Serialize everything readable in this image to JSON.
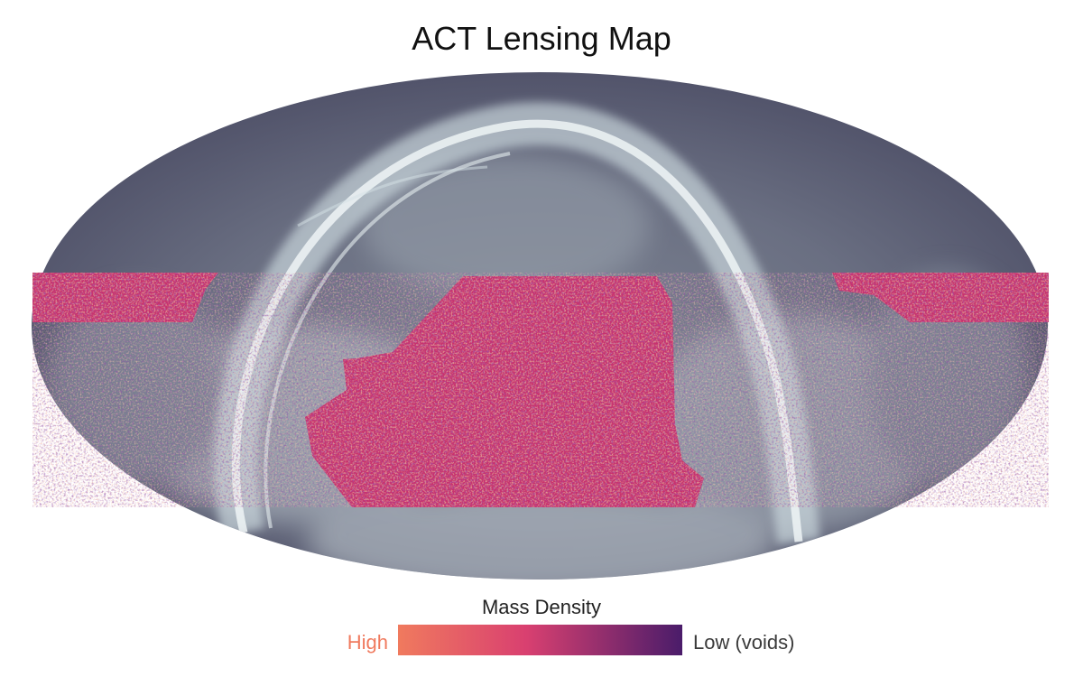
{
  "title": "ACT Lensing Map",
  "legend": {
    "title": "Mass Density",
    "high_label": "High",
    "low_label": "Low (voids)",
    "high_color": "#f07a5e",
    "mid_color": "#d94070",
    "low_color": "#4a1c6a"
  },
  "colors": {
    "sky_dark": "#4b4c64",
    "sky_mid": "#8a929e",
    "galaxy_band": "#dfe9ec",
    "lensing_base": "#c8326e"
  }
}
